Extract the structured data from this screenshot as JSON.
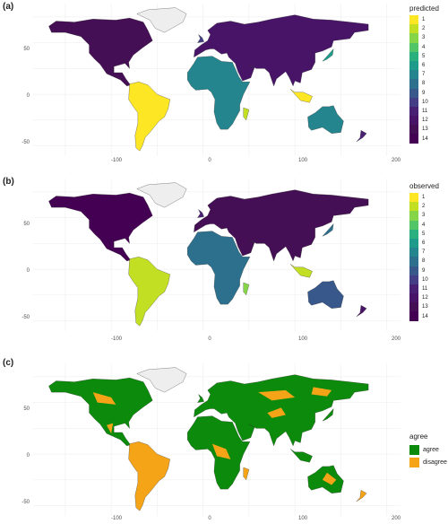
{
  "panels": [
    {
      "label": "(a)",
      "legend_title": "predicted"
    },
    {
      "label": "(b)",
      "legend_title": "observed"
    },
    {
      "label": "(c)",
      "legend_title": "agree"
    }
  ],
  "axes": {
    "x_ticks": [
      "-100",
      "0",
      "100",
      "200"
    ],
    "y_ticks": [
      "50",
      "0",
      "-50"
    ]
  },
  "scale_legend": {
    "labels": [
      "1",
      "2",
      "3",
      "4",
      "5",
      "6",
      "7",
      "8",
      "9",
      "10",
      "11",
      "12",
      "13",
      "14"
    ],
    "colors": [
      "#FDE725",
      "#C2DF23",
      "#86D549",
      "#52C569",
      "#2AB07F",
      "#1E9B8A",
      "#25858E",
      "#2D708E",
      "#38588C",
      "#433E85",
      "#482173",
      "#481467",
      "#440F54",
      "#440154"
    ]
  },
  "agree_legend": {
    "items": [
      {
        "label": "agree",
        "color": "#0B8A0B"
      },
      {
        "label": "disagree",
        "color": "#F5A418"
      }
    ]
  }
}
